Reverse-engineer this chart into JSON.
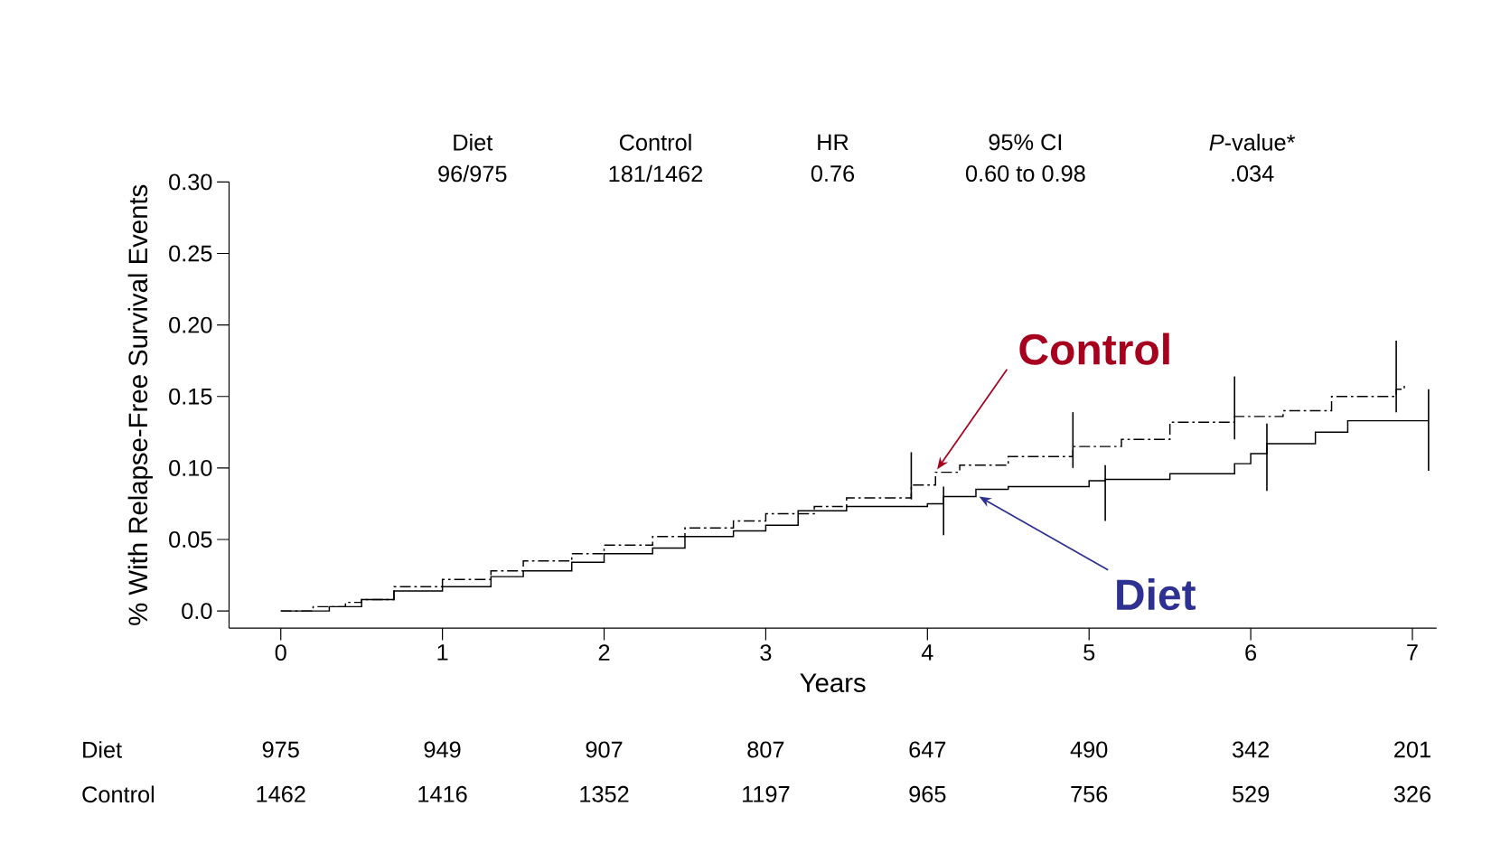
{
  "chart_data": {
    "type": "step",
    "ylabel": "% With Relapse-Free Survival Events",
    "xlabel": "Years",
    "xlim": [
      -0.32,
      7.15
    ],
    "xticks": [
      0,
      1,
      2,
      3,
      4,
      5,
      6,
      7
    ],
    "ylim": [
      -0.012,
      0.3
    ],
    "yticks": [
      {
        "value": 0,
        "label": "0.0"
      },
      0.05,
      {
        "value": 0.1,
        "label": "0.10"
      },
      0.15,
      {
        "value": 0.2,
        "label": "0.20"
      },
      0.25,
      {
        "value": 0.3,
        "label": "0.30"
      }
    ],
    "series": [
      {
        "color": "#000000",
        "line_style": "dashed",
        "x": [
          0,
          0.2,
          0.4,
          0.5,
          0.7,
          1.0,
          1.3,
          1.5,
          1.8,
          2.0,
          2.3,
          2.5,
          2.8,
          3.0,
          3.3,
          3.5,
          3.9,
          4.05,
          4.2,
          4.5,
          4.9,
          5.2,
          5.5,
          5.9,
          6.2,
          6.5,
          6.9,
          6.95
        ],
        "values": [
          0,
          0.003,
          0.006,
          0.008,
          0.017,
          0.022,
          0.028,
          0.035,
          0.04,
          0.046,
          0.052,
          0.058,
          0.063,
          0.068,
          0.073,
          0.079,
          0.088,
          0.097,
          0.102,
          0.108,
          0.115,
          0.12,
          0.132,
          0.136,
          0.14,
          0.15,
          0.155,
          0.158
        ],
        "errors": [
          null,
          null,
          null,
          null,
          null,
          null,
          null,
          null,
          null,
          null,
          null,
          null,
          null,
          null,
          null,
          null,
          [
            0.078,
            0.111
          ],
          null,
          null,
          null,
          [
            0.1,
            0.139
          ],
          null,
          null,
          [
            0.12,
            0.164
          ],
          null,
          null,
          [
            0.139,
            0.189
          ],
          null
        ]
      },
      {
        "color": "#000000",
        "line_style": "solid",
        "x": [
          0,
          0.3,
          0.5,
          0.7,
          1.0,
          1.3,
          1.5,
          1.8,
          2.0,
          2.3,
          2.5,
          2.8,
          3.0,
          3.2,
          3.5,
          4.0,
          4.1,
          4.3,
          4.5,
          5.0,
          5.1,
          5.5,
          5.9,
          6.0,
          6.1,
          6.4,
          6.6,
          7.0,
          7.1
        ],
        "values": [
          0,
          0.003,
          0.008,
          0.014,
          0.017,
          0.024,
          0.028,
          0.034,
          0.04,
          0.044,
          0.052,
          0.056,
          0.06,
          0.07,
          0.073,
          0.075,
          0.08,
          0.085,
          0.087,
          0.091,
          0.092,
          0.096,
          0.103,
          0.11,
          0.117,
          0.125,
          0.133,
          0.133,
          0.133
        ],
        "errors": [
          null,
          null,
          null,
          null,
          null,
          null,
          null,
          null,
          null,
          null,
          null,
          null,
          null,
          null,
          null,
          null,
          [
            0.053,
            0.087
          ],
          null,
          null,
          null,
          [
            0.063,
            0.102
          ],
          null,
          null,
          null,
          [
            0.084,
            0.131
          ],
          null,
          null,
          null,
          [
            0.098,
            0.155
          ]
        ]
      }
    ],
    "annotations": [
      "Diet",
      "96/975",
      "Control",
      "181/1462",
      "HR",
      "0.76",
      "95% CI",
      "0.60 to 0.98",
      "*P*-value*",
      ".034",
      "Diet",
      "975",
      "949",
      "907",
      "807",
      "647",
      "490",
      "342",
      "201",
      "Control",
      "1462",
      "1416",
      "1352",
      "1197",
      "965",
      "756",
      "529",
      "326",
      {
        "text": "Control",
        "x": 4.06,
        "y": 0.099
      },
      {
        "text": "Diet",
        "x": 4.32,
        "y": 0.08
      }
    ]
  }
}
